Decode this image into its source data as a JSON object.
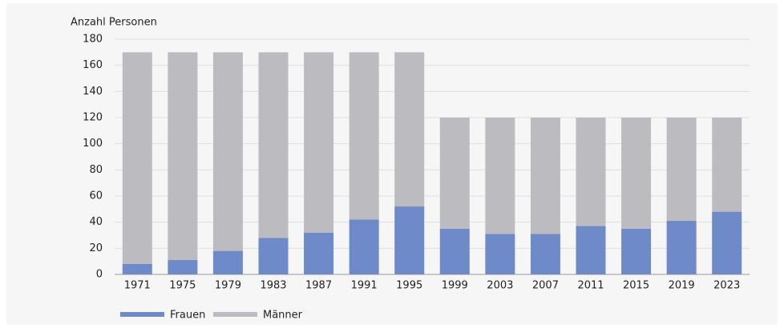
{
  "chart_data": {
    "type": "stacked_bar",
    "y_axis_label": "Anzahl Personen",
    "categories": [
      "1971",
      "1975",
      "1979",
      "1983",
      "1987",
      "1991",
      "1995",
      "1999",
      "2003",
      "2007",
      "2011",
      "2015",
      "2019",
      "2023"
    ],
    "series": [
      {
        "name": "Frauen",
        "color": "#6f8ac8",
        "values": [
          8,
          11,
          18,
          28,
          32,
          42,
          52,
          35,
          31,
          31,
          37,
          35,
          41,
          48
        ]
      },
      {
        "name": "Männer",
        "color": "#bcbcc0",
        "values": [
          162,
          159,
          152,
          142,
          138,
          128,
          118,
          85,
          89,
          89,
          83,
          85,
          79,
          72
        ]
      }
    ],
    "ylim": [
      0,
      180
    ],
    "yticks": [
      0,
      20,
      40,
      60,
      80,
      100,
      120,
      140,
      160,
      180
    ],
    "grid": true,
    "legend": "bottom-left"
  }
}
